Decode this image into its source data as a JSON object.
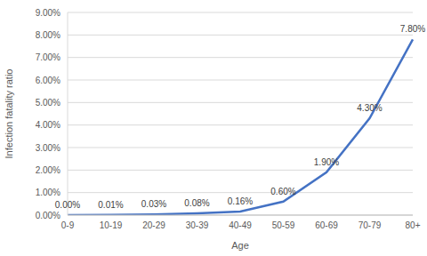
{
  "chart_data": {
    "type": "line",
    "x_label": "Age",
    "y_label": "Infection fatality ratio",
    "categories": [
      "0-9",
      "10-19",
      "20-29",
      "30-39",
      "40-49",
      "50-59",
      "60-69",
      "70-79",
      "80+"
    ],
    "values": [
      0,
      0.01,
      0.03,
      0.08,
      0.16,
      0.6,
      1.9,
      4.3,
      7.8
    ],
    "value_labels": [
      "0.00%",
      "0.01%",
      "0.03%",
      "0.08%",
      "0.16%",
      "0.60%",
      "1.90%",
      "4.30%",
      "7.80%"
    ],
    "color": "#4472c4",
    "ylim": [
      0,
      9
    ],
    "yticks": [
      {
        "value": 0,
        "label": "0.00%"
      },
      {
        "value": 1,
        "label": "1.00%"
      },
      {
        "value": 2,
        "label": "2.00%"
      },
      {
        "value": 3,
        "label": "3.00%"
      },
      {
        "value": 4,
        "label": "4.00%"
      },
      {
        "value": 5,
        "label": "5.00%"
      },
      {
        "value": 6,
        "label": "6.00%"
      },
      {
        "value": 7,
        "label": "7.00%"
      },
      {
        "value": 8,
        "label": "8.00%"
      },
      {
        "value": 9,
        "label": "9.00%"
      }
    ],
    "grid": true,
    "data_labels": true,
    "marker": "none"
  }
}
